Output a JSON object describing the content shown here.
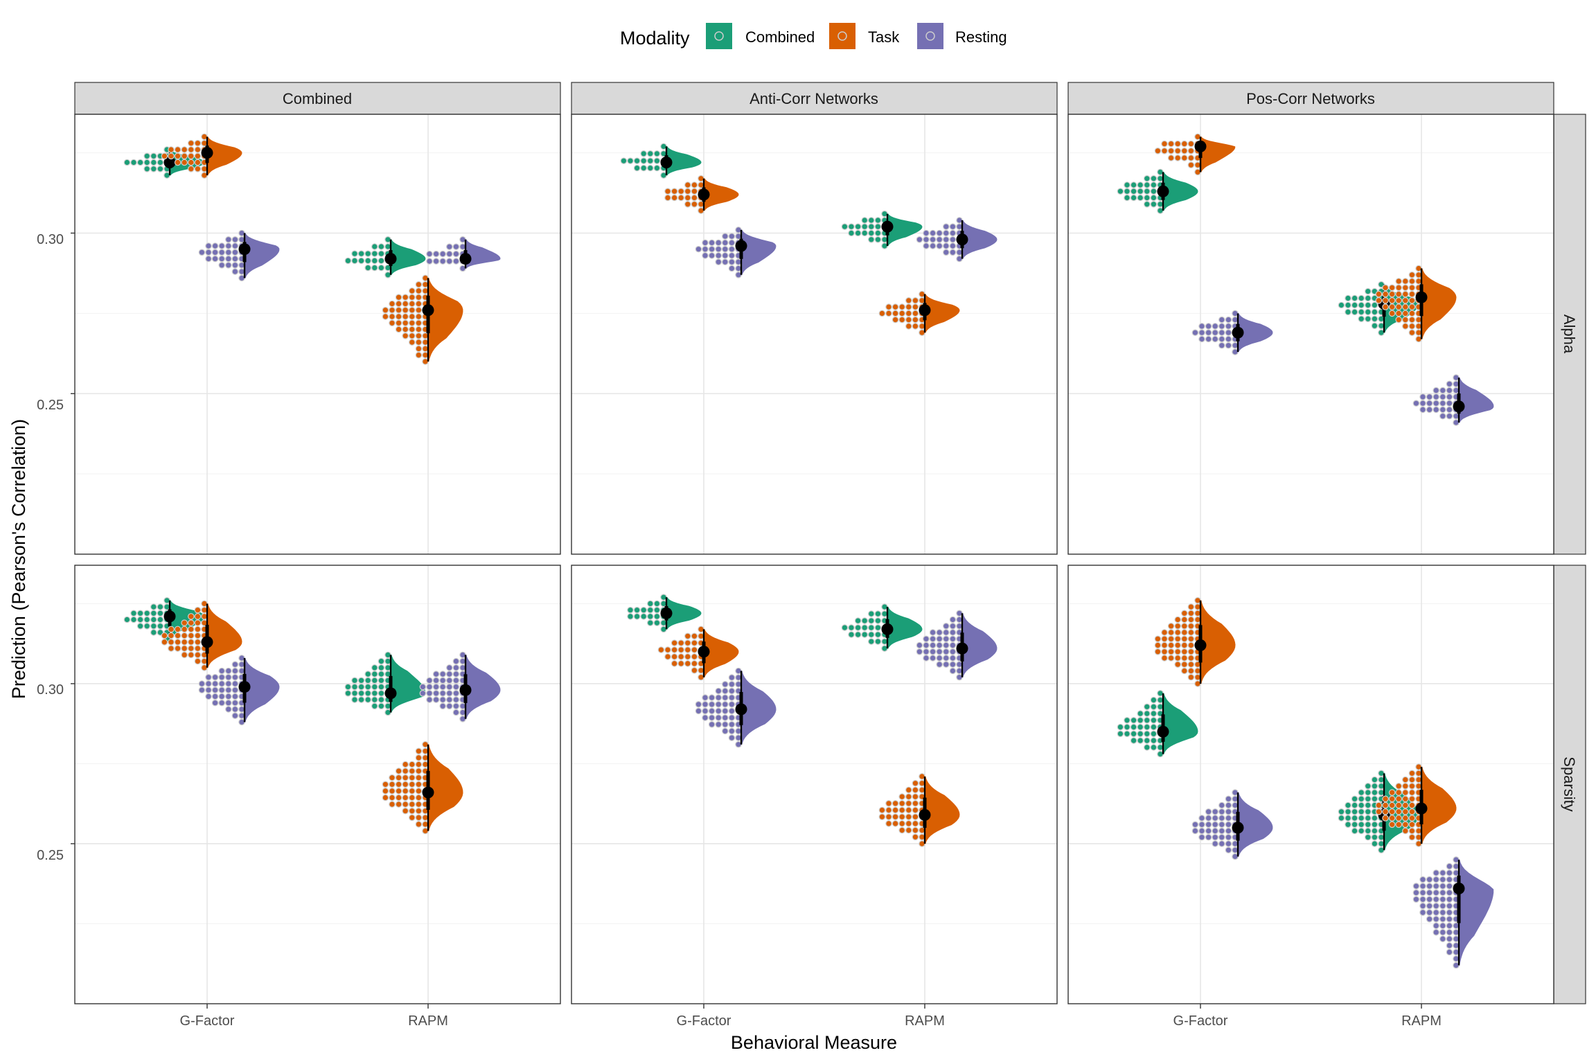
{
  "chart_data": {
    "type": "raincloud",
    "legend": {
      "title": "Modality",
      "position": "top",
      "entries": [
        {
          "name": "Combined",
          "color": "#1B9E77"
        },
        {
          "name": "Task",
          "color": "#D95F02"
        },
        {
          "name": "Resting",
          "color": "#7570B3"
        }
      ]
    },
    "xlabel": "Behavioral Measure",
    "ylabel": "Prediction (Pearson's Correlation)",
    "categories": [
      "G-Factor",
      "RAPM"
    ],
    "ylim": [
      0.2,
      0.337
    ],
    "y_ticks": [
      0.25,
      0.3
    ],
    "y_tick_labels": [
      "0.25",
      "0.30"
    ],
    "grid": true,
    "columns": [
      "Combined",
      "Anti-Corr Networks",
      "Pos-Corr Networks"
    ],
    "rows": [
      "Alpha",
      "Sparsity"
    ],
    "panels": [
      {
        "row": "Alpha",
        "column": "Combined",
        "groups": [
          {
            "category": "G-Factor",
            "modality": "Combined",
            "median": 0.322,
            "min": 0.318,
            "max": 0.326
          },
          {
            "category": "G-Factor",
            "modality": "Task",
            "median": 0.325,
            "min": 0.318,
            "max": 0.33
          },
          {
            "category": "G-Factor",
            "modality": "Resting",
            "median": 0.295,
            "min": 0.286,
            "max": 0.3
          },
          {
            "category": "RAPM",
            "modality": "Combined",
            "median": 0.292,
            "min": 0.287,
            "max": 0.298
          },
          {
            "category": "RAPM",
            "modality": "Task",
            "median": 0.276,
            "min": 0.26,
            "max": 0.286
          },
          {
            "category": "RAPM",
            "modality": "Resting",
            "median": 0.292,
            "min": 0.289,
            "max": 0.298
          }
        ]
      },
      {
        "row": "Alpha",
        "column": "Anti-Corr Networks",
        "groups": [
          {
            "category": "G-Factor",
            "modality": "Combined",
            "median": 0.322,
            "min": 0.318,
            "max": 0.327
          },
          {
            "category": "G-Factor",
            "modality": "Task",
            "median": 0.312,
            "min": 0.307,
            "max": 0.317
          },
          {
            "category": "G-Factor",
            "modality": "Resting",
            "median": 0.296,
            "min": 0.287,
            "max": 0.301
          },
          {
            "category": "RAPM",
            "modality": "Combined",
            "median": 0.302,
            "min": 0.296,
            "max": 0.306
          },
          {
            "category": "RAPM",
            "modality": "Task",
            "median": 0.276,
            "min": 0.269,
            "max": 0.281
          },
          {
            "category": "RAPM",
            "modality": "Resting",
            "median": 0.298,
            "min": 0.292,
            "max": 0.304
          }
        ]
      },
      {
        "row": "Alpha",
        "column": "Pos-Corr Networks",
        "groups": [
          {
            "category": "G-Factor",
            "modality": "Combined",
            "median": 0.313,
            "min": 0.307,
            "max": 0.319
          },
          {
            "category": "G-Factor",
            "modality": "Task",
            "median": 0.327,
            "min": 0.319,
            "max": 0.33
          },
          {
            "category": "G-Factor",
            "modality": "Resting",
            "median": 0.269,
            "min": 0.263,
            "max": 0.275
          },
          {
            "category": "RAPM",
            "modality": "Combined",
            "median": 0.278,
            "min": 0.269,
            "max": 0.284
          },
          {
            "category": "RAPM",
            "modality": "Task",
            "median": 0.28,
            "min": 0.267,
            "max": 0.289
          },
          {
            "category": "RAPM",
            "modality": "Resting",
            "median": 0.246,
            "min": 0.241,
            "max": 0.255
          }
        ]
      },
      {
        "row": "Sparsity",
        "column": "Combined",
        "groups": [
          {
            "category": "G-Factor",
            "modality": "Combined",
            "median": 0.321,
            "min": 0.314,
            "max": 0.326
          },
          {
            "category": "G-Factor",
            "modality": "Task",
            "median": 0.313,
            "min": 0.305,
            "max": 0.325
          },
          {
            "category": "G-Factor",
            "modality": "Resting",
            "median": 0.299,
            "min": 0.288,
            "max": 0.308
          },
          {
            "category": "RAPM",
            "modality": "Combined",
            "median": 0.297,
            "min": 0.291,
            "max": 0.309
          },
          {
            "category": "RAPM",
            "modality": "Task",
            "median": 0.266,
            "min": 0.254,
            "max": 0.281
          },
          {
            "category": "RAPM",
            "modality": "Resting",
            "median": 0.298,
            "min": 0.289,
            "max": 0.309
          }
        ]
      },
      {
        "row": "Sparsity",
        "column": "Anti-Corr Networks",
        "groups": [
          {
            "category": "G-Factor",
            "modality": "Combined",
            "median": 0.322,
            "min": 0.317,
            "max": 0.327
          },
          {
            "category": "G-Factor",
            "modality": "Task",
            "median": 0.31,
            "min": 0.302,
            "max": 0.317
          },
          {
            "category": "G-Factor",
            "modality": "Resting",
            "median": 0.292,
            "min": 0.281,
            "max": 0.304
          },
          {
            "category": "RAPM",
            "modality": "Combined",
            "median": 0.317,
            "min": 0.311,
            "max": 0.324
          },
          {
            "category": "RAPM",
            "modality": "Task",
            "median": 0.259,
            "min": 0.25,
            "max": 0.271
          },
          {
            "category": "RAPM",
            "modality": "Resting",
            "median": 0.311,
            "min": 0.302,
            "max": 0.322
          }
        ]
      },
      {
        "row": "Sparsity",
        "column": "Pos-Corr Networks",
        "groups": [
          {
            "category": "G-Factor",
            "modality": "Combined",
            "median": 0.285,
            "min": 0.278,
            "max": 0.297
          },
          {
            "category": "G-Factor",
            "modality": "Task",
            "median": 0.312,
            "min": 0.3,
            "max": 0.326
          },
          {
            "category": "G-Factor",
            "modality": "Resting",
            "median": 0.255,
            "min": 0.246,
            "max": 0.266
          },
          {
            "category": "RAPM",
            "modality": "Combined",
            "median": 0.259,
            "min": 0.248,
            "max": 0.272
          },
          {
            "category": "RAPM",
            "modality": "Task",
            "median": 0.261,
            "min": 0.25,
            "max": 0.274
          },
          {
            "category": "RAPM",
            "modality": "Resting",
            "median": 0.236,
            "min": 0.212,
            "max": 0.245
          }
        ]
      }
    ]
  }
}
